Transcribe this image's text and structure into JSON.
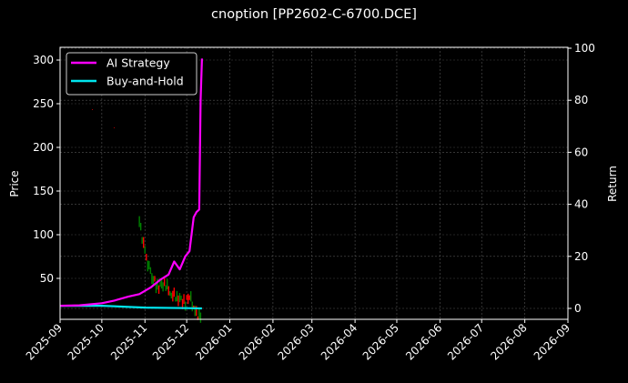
{
  "chart_data": {
    "type": "line",
    "title": "cnoption [PP2602-C-6700.DCE]",
    "xlabel": "",
    "ylabel": "Price",
    "ylabel_right": "Return",
    "x_ticks": [
      "2025-09",
      "2025-10",
      "2025-11",
      "2025-12",
      "2026-01",
      "2026-02",
      "2026-03",
      "2026-04",
      "2026-05",
      "2026-06",
      "2026-07",
      "2026-08",
      "2026-09"
    ],
    "y_ticks_left": [
      50,
      100,
      150,
      200,
      250,
      300
    ],
    "y_ticks_right": [
      0,
      20,
      40,
      60,
      80,
      100
    ],
    "ylim_left": [
      3,
      315
    ],
    "ylim_right": [
      -5,
      100
    ],
    "xlim": [
      "2025-09",
      "2026-09"
    ],
    "grid": true,
    "legend_position": "upper left",
    "legend": [
      {
        "name": "AI Strategy",
        "color": "#ff00ff"
      },
      {
        "name": "Buy-and-Hold",
        "color": "#00e5ee"
      }
    ],
    "series": [
      {
        "name": "AI Strategy",
        "axis": "right",
        "color": "#ff00ff",
        "x": [
          "2025-09-01",
          "2025-09-15",
          "2025-10-01",
          "2025-10-10",
          "2025-10-20",
          "2025-10-28",
          "2025-11-05",
          "2025-11-12",
          "2025-11-18",
          "2025-11-22",
          "2025-11-26",
          "2025-11-30",
          "2025-12-03",
          "2025-12-06",
          "2025-12-08",
          "2025-12-10",
          "2025-12-11",
          "2025-12-12"
        ],
        "values": [
          1.0,
          1.2,
          2.0,
          3.0,
          4.5,
          5.5,
          8,
          11,
          13,
          18,
          15,
          20,
          22,
          35,
          37,
          38,
          80,
          96
        ]
      },
      {
        "name": "Buy-and-Hold",
        "axis": "right",
        "color": "#00e5ee",
        "x": [
          "2025-09-01",
          "2025-10-01",
          "2025-11-01",
          "2025-12-01",
          "2025-12-12"
        ],
        "values": [
          1.0,
          1.0,
          0.3,
          0.1,
          0.0
        ]
      },
      {
        "name": "Price (candles)",
        "axis": "left",
        "color_up": "#008000",
        "color_down": "#ff0000",
        "x": [
          "2025-10-28",
          "2025-11-01",
          "2025-11-05",
          "2025-11-10",
          "2025-11-15",
          "2025-11-20",
          "2025-11-25",
          "2025-11-30",
          "2025-12-03",
          "2025-12-07",
          "2025-12-12"
        ],
        "values": [
          115,
          80,
          55,
          40,
          45,
          32,
          28,
          22,
          30,
          12,
          3
        ]
      }
    ]
  }
}
